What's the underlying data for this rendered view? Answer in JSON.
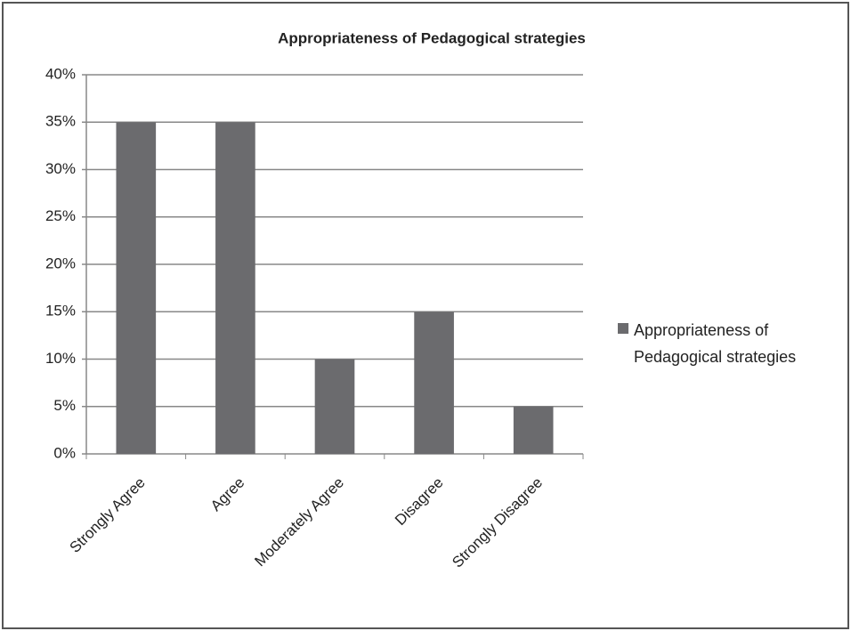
{
  "chart_data": {
    "type": "bar",
    "title": "Appropriateness of Pedagogical strategies",
    "categories": [
      "Strongly Agree",
      "Agree",
      "Moderately Agree",
      "Disagree",
      "Strongly Disagree"
    ],
    "series": [
      {
        "name": "Appropriateness of Pedagogical strategies",
        "color": "#6b6b6e",
        "values": [
          35,
          35,
          10,
          15,
          5
        ]
      }
    ],
    "ylim": [
      0,
      40
    ],
    "yticks": [
      {
        "value": 0,
        "label": "0%"
      },
      {
        "value": 5,
        "label": "5%"
      },
      {
        "value": 10,
        "label": "10%"
      },
      {
        "value": 15,
        "label": "15%"
      },
      {
        "value": 20,
        "label": "20%"
      },
      {
        "value": 25,
        "label": "25%"
      },
      {
        "value": 30,
        "label": "30%"
      },
      {
        "value": 35,
        "label": "35%"
      },
      {
        "value": 40,
        "label": "40%"
      }
    ],
    "grid": true,
    "legend": "right"
  }
}
